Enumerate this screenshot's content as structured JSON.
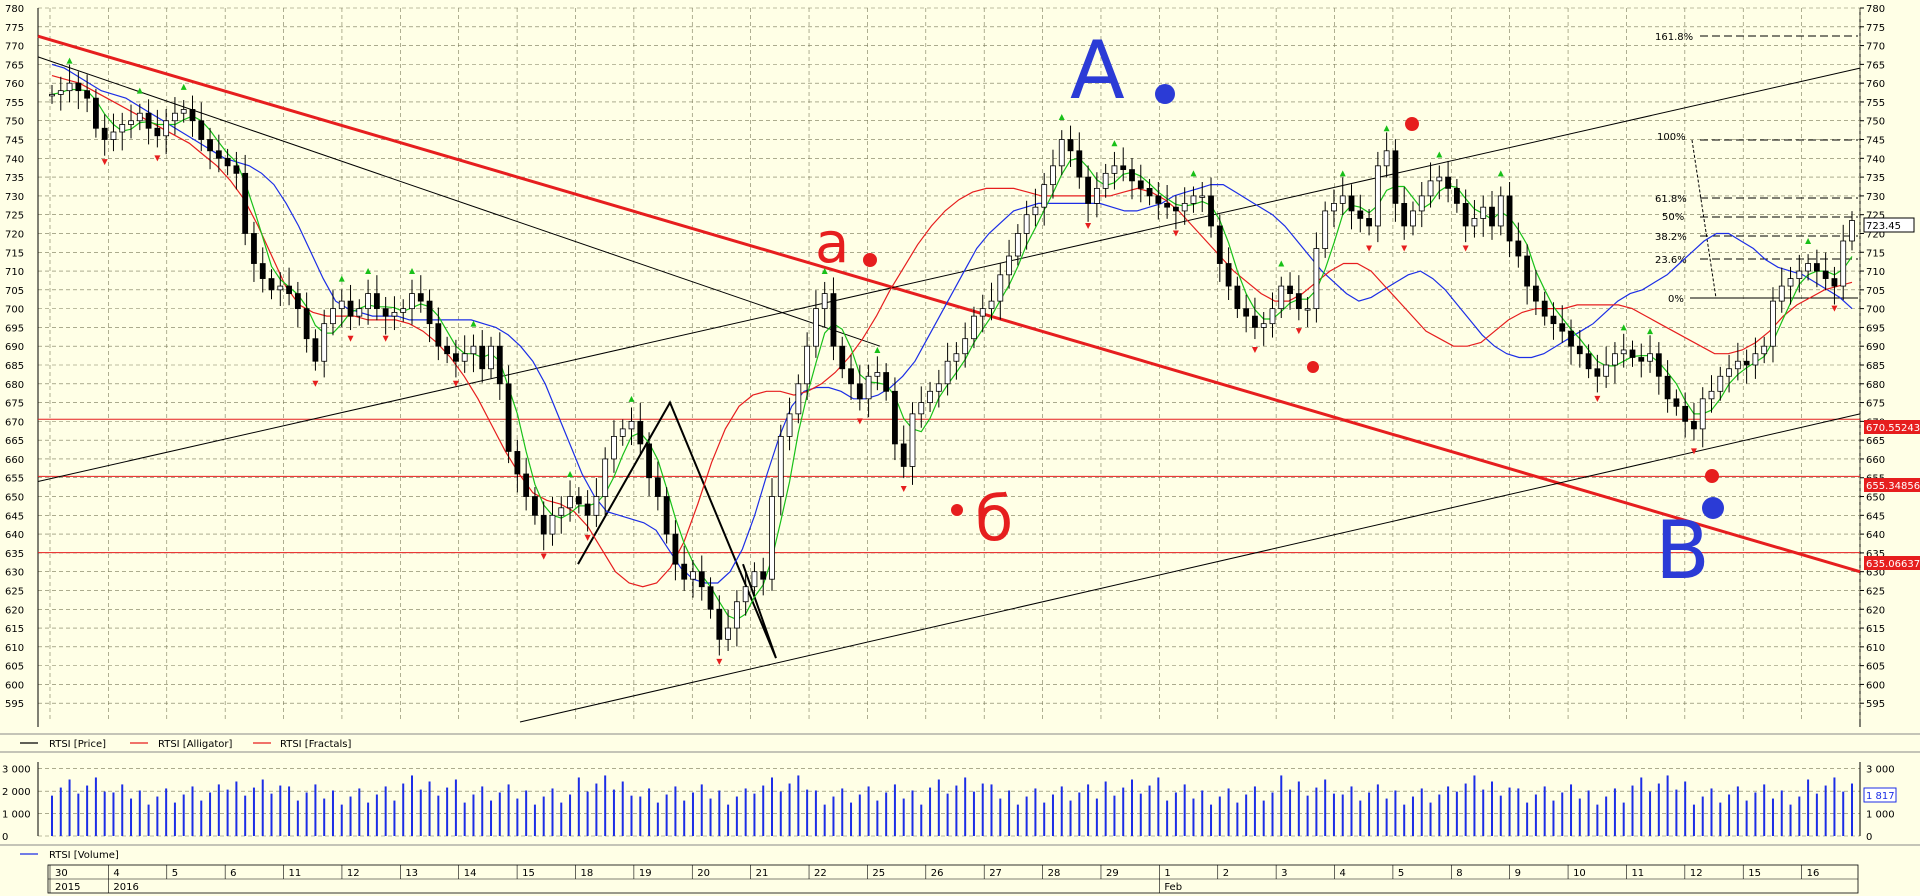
{
  "colors": {
    "background": "#ffffe6",
    "grid": "#7a7a5a",
    "price": "#000000",
    "alligator_jaw": "#1c2ee6",
    "alligator_teeth": "#e61e1e",
    "alligator_lips": "#18c018",
    "fractal_up": "#18c018",
    "fractal_down": "#e61e1e",
    "trendline_red": "#e61e1e",
    "volume": "#1c2ee6",
    "annotation_blue": "#2b3bd6",
    "annotation_red": "#e61e1e"
  },
  "chart_data": [
    {
      "type": "candlestick",
      "title": "",
      "y_ticks": [
        595,
        600,
        605,
        610,
        615,
        620,
        625,
        630,
        635,
        640,
        645,
        650,
        655,
        660,
        665,
        670,
        675,
        680,
        685,
        690,
        695,
        700,
        705,
        710,
        715,
        720,
        725,
        730,
        735,
        740,
        745,
        750,
        755,
        760,
        765,
        770,
        775,
        780
      ],
      "ylim": [
        590,
        780
      ],
      "grid": true,
      "legend": [
        {
          "label": "RTSI [Price]",
          "color_key": "price"
        },
        {
          "label": "RTSI [Alligator]",
          "color_key": "alligator_teeth"
        },
        {
          "label": "RTSI [Fractals]",
          "color_key": "fractal_down"
        }
      ],
      "x_day_labels": [
        "30",
        "4",
        "5",
        "6",
        "11",
        "12",
        "13",
        "14",
        "15",
        "18",
        "19",
        "20",
        "21",
        "22",
        "25",
        "26",
        "27",
        "28",
        "29",
        "1",
        "2",
        "3",
        "4",
        "5",
        "8",
        "9",
        "10",
        "11",
        "12",
        "15",
        "16"
      ],
      "x_month_labels": [
        {
          "label": "2015",
          "at_day": 0
        },
        {
          "label": "2016",
          "at_day": 1
        },
        {
          "label": "Feb",
          "at_day": 19
        }
      ],
      "bar_closes": [
        757,
        758,
        760,
        758,
        756,
        748,
        745,
        747,
        749,
        750,
        752,
        748,
        746,
        750,
        752,
        753,
        750,
        745,
        742,
        740,
        738,
        736,
        720,
        712,
        708,
        705,
        706,
        704,
        700,
        692,
        686,
        696,
        700,
        702,
        698,
        700,
        704,
        700,
        698,
        699,
        700,
        704,
        702,
        696,
        690,
        688,
        686,
        688,
        690,
        684,
        690,
        680,
        662,
        656,
        650,
        645,
        640,
        645,
        647,
        650,
        648,
        645,
        650,
        660,
        666,
        668,
        670,
        664,
        655,
        650,
        640,
        632,
        628,
        630,
        626,
        620,
        612,
        615,
        622,
        626,
        630,
        628,
        650,
        666,
        672,
        680,
        690,
        700,
        704,
        690,
        684,
        680,
        676,
        682,
        683,
        678,
        664,
        658,
        672,
        675,
        678,
        680,
        686,
        688,
        692,
        698,
        700,
        702,
        709,
        714,
        720,
        725,
        727,
        733,
        738,
        745,
        742,
        735,
        728,
        732,
        736,
        738,
        737,
        734,
        732,
        730,
        728,
        727,
        726,
        728,
        730,
        730,
        722,
        712,
        706,
        700,
        698,
        695,
        696,
        700,
        706,
        704,
        700,
        700,
        716,
        726,
        728,
        730,
        726,
        724,
        722,
        738,
        742,
        728,
        722,
        726,
        730,
        734,
        735,
        732,
        728,
        722,
        724,
        727,
        722,
        730,
        718,
        714,
        706,
        702,
        698,
        696,
        694,
        690,
        688,
        684,
        682,
        685,
        688,
        689,
        687,
        686,
        688,
        682,
        676,
        674,
        670,
        668,
        676,
        678,
        682,
        684,
        686,
        685,
        688,
        690,
        702,
        706,
        708,
        710,
        712,
        710,
        708,
        706,
        718,
        723.45
      ],
      "alligator_jaw": [
        765,
        764,
        762,
        760,
        758,
        757,
        756,
        754,
        752,
        750,
        748,
        746,
        744,
        742,
        740,
        739,
        738,
        736,
        733,
        728,
        722,
        715,
        708,
        702,
        700,
        699,
        698,
        698,
        698,
        697,
        697,
        697,
        697,
        697,
        697,
        696,
        695,
        693,
        690,
        686,
        680,
        672,
        664,
        656,
        650,
        646,
        645,
        644,
        643,
        641,
        636,
        631,
        628,
        627,
        627,
        630,
        636,
        645,
        656,
        666,
        674,
        678,
        679,
        679,
        678,
        676,
        676,
        677,
        679,
        682,
        686,
        692,
        698,
        704,
        710,
        716,
        720,
        723,
        726,
        727,
        728,
        728,
        728,
        728,
        728,
        728,
        727,
        726,
        726,
        727,
        728,
        730,
        731,
        732,
        733,
        733,
        731,
        729,
        727,
        725,
        722,
        718,
        714,
        710,
        707,
        704,
        702,
        703,
        705,
        707,
        709,
        710,
        708,
        705,
        701,
        697,
        693,
        690,
        688,
        687,
        687,
        688,
        690,
        692,
        694,
        696,
        699,
        702,
        704,
        705,
        707,
        709,
        712,
        715,
        718,
        720,
        720,
        718,
        716,
        713,
        711,
        710,
        709,
        707,
        705,
        703,
        700
      ],
      "alligator_teeth": [
        762,
        761,
        760,
        758,
        756,
        754,
        752,
        750,
        748,
        746,
        744,
        741,
        738,
        734,
        729,
        722,
        714,
        706,
        701,
        699,
        698,
        698,
        698,
        697,
        697,
        697,
        696,
        694,
        691,
        687,
        682,
        676,
        669,
        662,
        656,
        651,
        649,
        648,
        646,
        642,
        636,
        630,
        627,
        626,
        627,
        631,
        638,
        648,
        659,
        668,
        674,
        677,
        678,
        678,
        677,
        678,
        680,
        683,
        687,
        692,
        698,
        705,
        711,
        717,
        722,
        726,
        729,
        731,
        732,
        732,
        732,
        731,
        730,
        730,
        730,
        730,
        730,
        730,
        731,
        732,
        731,
        729,
        726,
        722,
        718,
        714,
        710,
        707,
        704,
        702,
        702,
        704,
        707,
        710,
        712,
        712,
        710,
        706,
        702,
        698,
        694,
        692,
        690,
        690,
        691,
        694,
        697,
        699,
        700,
        700,
        700,
        701,
        701,
        701,
        701,
        700,
        698,
        696,
        694,
        692,
        690,
        688,
        688,
        689,
        691,
        694,
        698,
        701,
        703,
        705,
        706,
        707
      ]
    },
    {
      "type": "bar",
      "title": "",
      "series_label": "RTSI [Volume]",
      "y_ticks": [
        0,
        1000,
        2000,
        3000
      ],
      "y_tick_labels": [
        "0",
        "1 000",
        "2 000",
        "3 000"
      ],
      "ylim": [
        0,
        3300
      ],
      "last_value_label": "1 817"
    }
  ],
  "price_labels": {
    "current": "723.45",
    "level_1": "670.55243",
    "level_2": "655.34856",
    "level_3": "635.06637"
  },
  "fib_labels": [
    "161.8%",
    "100%",
    "61.8%",
    "50%",
    "38.2%",
    "23.6%",
    "0%"
  ],
  "annotations": {
    "A": "A",
    "B": "B",
    "a": "a",
    "b": "б"
  }
}
